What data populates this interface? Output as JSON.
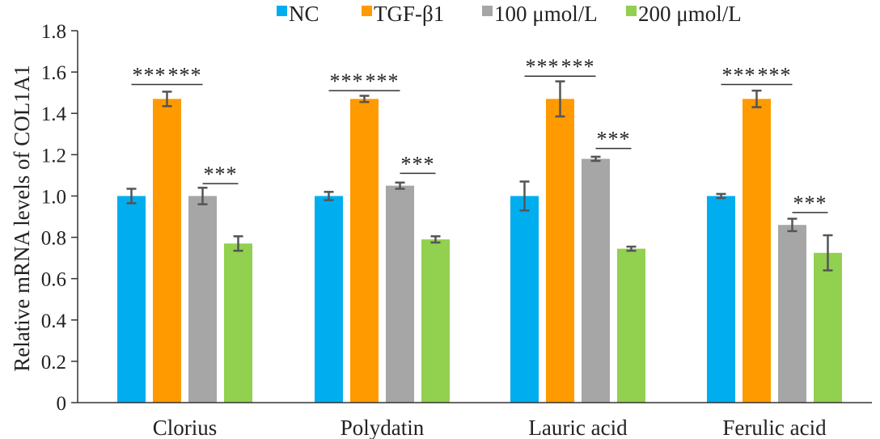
{
  "chart_data": {
    "type": "bar",
    "title": "",
    "xlabel": "",
    "ylabel": "Relative mRNA levels of COL1A1",
    "ylim": [
      0,
      1.8
    ],
    "yticks": [
      "0",
      "0.2",
      "0.4",
      "0.6",
      "0.8",
      "1.0",
      "1.2",
      "1.4",
      "1.6",
      "1.8"
    ],
    "grid": false,
    "legend_position": "top",
    "categories": [
      "Clorius",
      "Polydatin",
      "Lauric acid",
      "Ferulic acid"
    ],
    "series": [
      {
        "name": "NC",
        "color": "#00adef",
        "values": [
          1.0,
          1.0,
          1.0,
          1.0
        ],
        "errors": [
          0.035,
          0.02,
          0.07,
          0.01
        ]
      },
      {
        "name": "TGF-β1",
        "color": "#ff9a00",
        "values": [
          1.47,
          1.47,
          1.47,
          1.47
        ],
        "errors": [
          0.035,
          0.015,
          0.085,
          0.04
        ]
      },
      {
        "name": "100 μmol/L",
        "color": "#a6a6a6",
        "values": [
          1.0,
          1.05,
          1.18,
          0.86
        ],
        "errors": [
          0.04,
          0.015,
          0.01,
          0.03
        ]
      },
      {
        "name": "200 μmol/L",
        "color": "#92d050",
        "values": [
          0.77,
          0.79,
          0.745,
          0.725
        ],
        "errors": [
          0.035,
          0.015,
          0.01,
          0.085
        ]
      }
    ],
    "significance": [
      {
        "category": 0,
        "from": 0,
        "to": 1,
        "level": 1.54,
        "label": "***"
      },
      {
        "category": 0,
        "from": 1,
        "to": 2,
        "level": 1.54,
        "label": "***"
      },
      {
        "category": 0,
        "from": 2,
        "to": 3,
        "level": 1.06,
        "label": "***"
      },
      {
        "category": 1,
        "from": 0,
        "to": 1,
        "level": 1.51,
        "label": "***"
      },
      {
        "category": 1,
        "from": 1,
        "to": 2,
        "level": 1.51,
        "label": "***"
      },
      {
        "category": 1,
        "from": 2,
        "to": 3,
        "level": 1.11,
        "label": "***"
      },
      {
        "category": 2,
        "from": 0,
        "to": 1,
        "level": 1.58,
        "label": "***"
      },
      {
        "category": 2,
        "from": 1,
        "to": 2,
        "level": 1.58,
        "label": "***"
      },
      {
        "category": 2,
        "from": 2,
        "to": 3,
        "level": 1.23,
        "label": "***"
      },
      {
        "category": 3,
        "from": 0,
        "to": 1,
        "level": 1.54,
        "label": "***"
      },
      {
        "category": 3,
        "from": 1,
        "to": 2,
        "level": 1.54,
        "label": "***"
      },
      {
        "category": 3,
        "from": 2,
        "to": 3,
        "level": 0.92,
        "label": "***"
      }
    ]
  }
}
